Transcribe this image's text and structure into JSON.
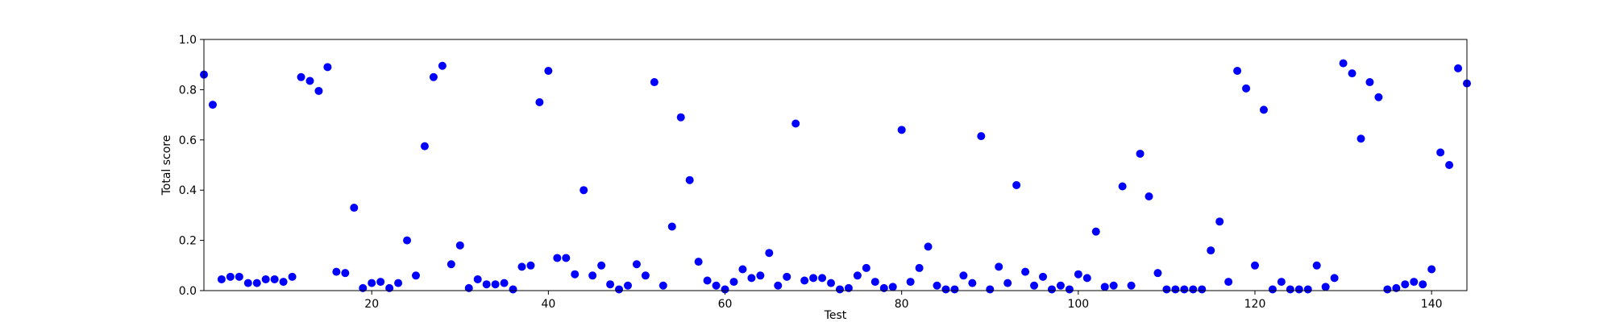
{
  "chart_data": {
    "type": "scatter",
    "xlabel": "Test",
    "ylabel": "Total score",
    "xlim": [
      1,
      144
    ],
    "ylim": [
      0,
      1.0
    ],
    "x_ticks": [
      20,
      40,
      60,
      80,
      100,
      120,
      140
    ],
    "x_tick_labels": [
      "20",
      "40",
      "60",
      "80",
      "100",
      "120",
      "140"
    ],
    "y_ticks": [
      0,
      0.2,
      0.4,
      0.6,
      0.8,
      1.0
    ],
    "y_tick_labels": [
      "0.0",
      "0.2",
      "0.4",
      "0.6",
      "0.8",
      "1.0"
    ],
    "grid": false,
    "marker_color": "#0000ff",
    "x": [
      1,
      2,
      3,
      4,
      5,
      6,
      7,
      8,
      9,
      10,
      11,
      12,
      13,
      14,
      15,
      16,
      17,
      18,
      19,
      20,
      21,
      22,
      23,
      24,
      25,
      26,
      27,
      28,
      29,
      30,
      31,
      32,
      33,
      34,
      35,
      36,
      37,
      38,
      39,
      40,
      41,
      42,
      43,
      44,
      45,
      46,
      47,
      48,
      49,
      50,
      51,
      52,
      53,
      54,
      55,
      56,
      57,
      58,
      59,
      60,
      61,
      62,
      63,
      64,
      65,
      66,
      67,
      68,
      69,
      70,
      71,
      72,
      73,
      74,
      75,
      76,
      77,
      78,
      79,
      80,
      81,
      82,
      83,
      84,
      85,
      86,
      87,
      88,
      89,
      90,
      91,
      92,
      93,
      94,
      95,
      96,
      97,
      98,
      99,
      100,
      101,
      102,
      103,
      104,
      105,
      106,
      107,
      108,
      109,
      110,
      111,
      112,
      113,
      114,
      115,
      116,
      117,
      118,
      119,
      120,
      121,
      122,
      123,
      124,
      125,
      126,
      127,
      128,
      129,
      130,
      131,
      132,
      133,
      134,
      135,
      136,
      137,
      138,
      139,
      140,
      141,
      142,
      143,
      144
    ],
    "y": [
      0.86,
      0.74,
      0.045,
      0.055,
      0.055,
      0.03,
      0.03,
      0.045,
      0.045,
      0.035,
      0.055,
      0.85,
      0.835,
      0.795,
      0.89,
      0.075,
      0.07,
      0.33,
      0.01,
      0.03,
      0.035,
      0.01,
      0.03,
      0.2,
      0.06,
      0.575,
      0.85,
      0.895,
      0.105,
      0.18,
      0.01,
      0.045,
      0.025,
      0.025,
      0.03,
      0.005,
      0.095,
      0.1,
      0.75,
      0.875,
      0.13,
      0.13,
      0.065,
      0.4,
      0.06,
      0.1,
      0.025,
      0.005,
      0.02,
      0.105,
      0.06,
      0.83,
      0.02,
      0.255,
      0.69,
      0.44,
      0.115,
      0.04,
      0.02,
      0.005,
      0.035,
      0.085,
      0.05,
      0.06,
      0.15,
      0.02,
      0.055,
      0.665,
      0.04,
      0.05,
      0.05,
      0.03,
      0.005,
      0.01,
      0.06,
      0.09,
      0.035,
      0.01,
      0.015,
      0.64,
      0.035,
      0.09,
      0.175,
      0.02,
      0.005,
      0.005,
      0.06,
      0.03,
      0.615,
      0.005,
      0.095,
      0.03,
      0.42,
      0.075,
      0.02,
      0.055,
      0.005,
      0.02,
      0.005,
      0.065,
      0.05,
      0.235,
      0.015,
      0.02,
      0.415,
      0.02,
      0.545,
      0.375,
      0.07,
      0.005,
      0.005,
      0.005,
      0.005,
      0.005,
      0.16,
      0.275,
      0.035,
      0.875,
      0.805,
      0.1,
      0.72,
      0.005,
      0.035,
      0.005,
      0.005,
      0.005,
      0.1,
      0.015,
      0.05,
      0.905,
      0.865,
      0.605,
      0.83,
      0.77,
      0.005,
      0.01,
      0.025,
      0.035,
      0.025,
      0.085,
      0.55,
      0.5,
      0.885,
      0.825
    ]
  }
}
